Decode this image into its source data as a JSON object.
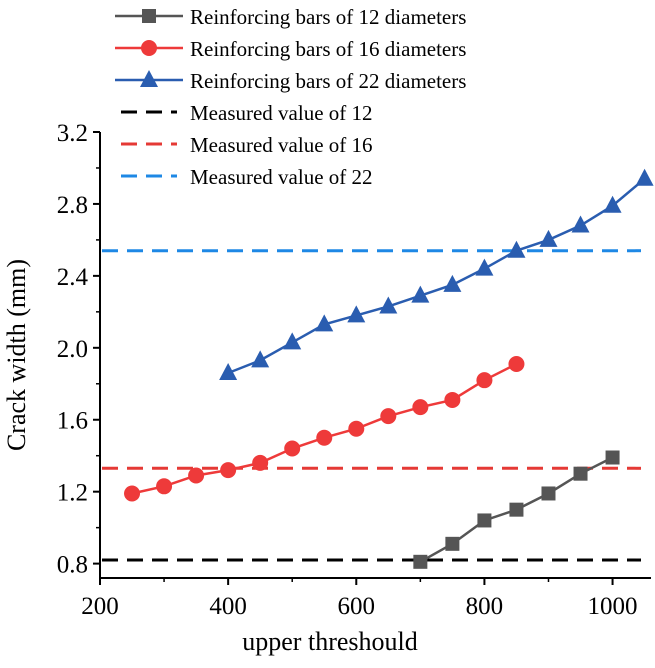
{
  "chart_data": {
    "type": "line",
    "title": "",
    "xlabel": "upper threshould",
    "ylabel": "Crack width (mm)",
    "xlim": [
      200,
      1060
    ],
    "ylim": [
      0.72,
      3.2
    ],
    "xticks": [
      200,
      400,
      600,
      800,
      1000
    ],
    "yticks": [
      0.8,
      1.2,
      1.6,
      2.0,
      2.4,
      2.8,
      3.2
    ],
    "xtick_labels": [
      "200",
      "400",
      "600",
      "800",
      "1000"
    ],
    "ytick_labels": [
      "0.8",
      "1.2",
      "1.6",
      "2.0",
      "2.4",
      "2.8",
      "3.2"
    ],
    "legend_position": "top-left",
    "series": [
      {
        "name": "Reinforcing bars of 12 diameters",
        "color": "#555555",
        "marker": "square",
        "x": [
          700,
          750,
          800,
          850,
          900,
          950,
          1000
        ],
        "values": [
          0.81,
          0.91,
          1.04,
          1.1,
          1.19,
          1.3,
          1.39
        ]
      },
      {
        "name": "Reinforcing bars of 16 diameters",
        "color": "#ee3a3a",
        "marker": "circle",
        "x": [
          250,
          300,
          350,
          400,
          450,
          500,
          550,
          600,
          650,
          700,
          750,
          800,
          850
        ],
        "values": [
          1.19,
          1.23,
          1.29,
          1.32,
          1.36,
          1.44,
          1.5,
          1.55,
          1.62,
          1.67,
          1.71,
          1.82,
          1.91
        ]
      },
      {
        "name": "Reinforcing bars of 22 diameters",
        "color": "#2a5db0",
        "marker": "triangle",
        "x": [
          400,
          450,
          500,
          550,
          600,
          650,
          700,
          750,
          800,
          850,
          900,
          950,
          1000,
          1050
        ],
        "values": [
          1.86,
          1.93,
          2.03,
          2.13,
          2.18,
          2.23,
          2.29,
          2.35,
          2.44,
          2.54,
          2.6,
          2.68,
          2.79,
          2.94
        ]
      }
    ],
    "reference_lines": [
      {
        "name": "Measured value of 12",
        "color": "#000000",
        "y": 0.82
      },
      {
        "name": "Measured value of 16",
        "color": "#e53935",
        "y": 1.33
      },
      {
        "name": "Measured value of 22",
        "color": "#1e88e5",
        "y": 2.54
      }
    ]
  }
}
